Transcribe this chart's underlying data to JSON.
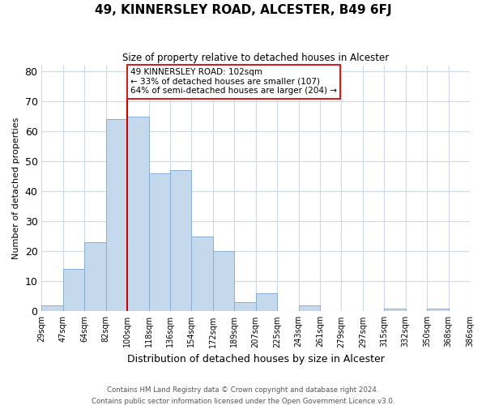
{
  "title": "49, KINNERSLEY ROAD, ALCESTER, B49 6FJ",
  "subtitle": "Size of property relative to detached houses in Alcester",
  "xlabel": "Distribution of detached houses by size in Alcester",
  "ylabel": "Number of detached properties",
  "bar_color": "#c5d9ed",
  "bar_edge_color": "#88afd4",
  "bin_labels": [
    "29sqm",
    "47sqm",
    "64sqm",
    "82sqm",
    "100sqm",
    "118sqm",
    "136sqm",
    "154sqm",
    "172sqm",
    "189sqm",
    "207sqm",
    "225sqm",
    "243sqm",
    "261sqm",
    "279sqm",
    "297sqm",
    "315sqm",
    "332sqm",
    "350sqm",
    "368sqm",
    "386sqm"
  ],
  "bar_heights": [
    2,
    14,
    23,
    64,
    65,
    46,
    47,
    25,
    20,
    3,
    6,
    0,
    2,
    0,
    0,
    0,
    1,
    0,
    1,
    0
  ],
  "vline_index": 4,
  "vline_color": "#cc0000",
  "annotation_text": "49 KINNERSLEY ROAD: 102sqm\n← 33% of detached houses are smaller (107)\n64% of semi-detached houses are larger (204) →",
  "ylim": [
    0,
    82
  ],
  "yticks": [
    0,
    10,
    20,
    30,
    40,
    50,
    60,
    70,
    80
  ],
  "background_color": "#ffffff",
  "grid_color": "#d0d8e8",
  "footer_line1": "Contains HM Land Registry data © Crown copyright and database right 2024.",
  "footer_line2": "Contains public sector information licensed under the Open Government Licence v3.0."
}
